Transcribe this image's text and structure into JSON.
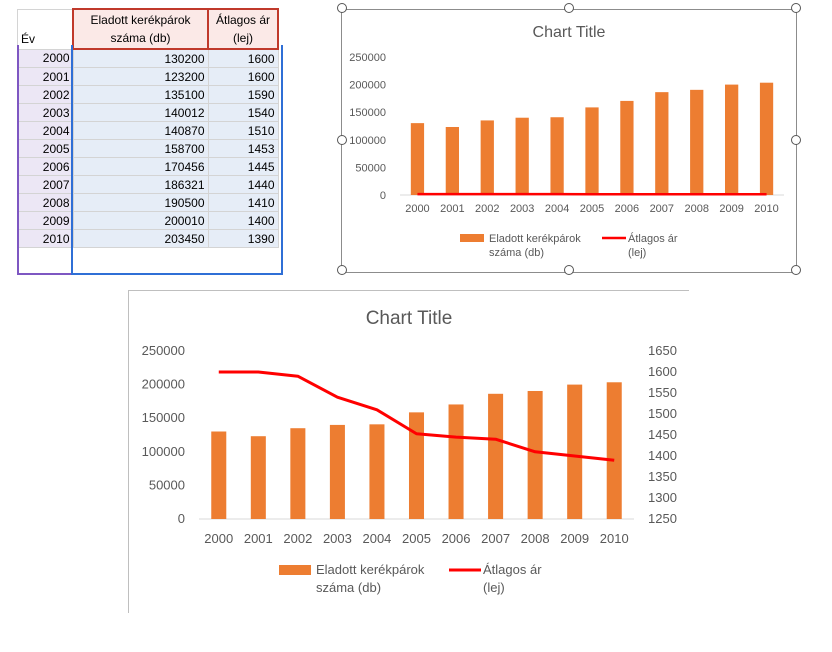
{
  "table": {
    "headers": {
      "year": "Év",
      "count_line1": "Eladott kerékpárok",
      "count_line2": "száma (db)",
      "price_line1": "Átlagos ár",
      "price_line2": "(lej)"
    },
    "rows": [
      {
        "year": "2000",
        "count": "130200",
        "price": "1600"
      },
      {
        "year": "2001",
        "count": "123200",
        "price": "1600"
      },
      {
        "year": "2002",
        "count": "135100",
        "price": "1590"
      },
      {
        "year": "2003",
        "count": "140012",
        "price": "1540"
      },
      {
        "year": "2004",
        "count": "140870",
        "price": "1510"
      },
      {
        "year": "2005",
        "count": "158700",
        "price": "1453"
      },
      {
        "year": "2006",
        "count": "170456",
        "price": "1445"
      },
      {
        "year": "2007",
        "count": "186321",
        "price": "1440"
      },
      {
        "year": "2008",
        "count": "190500",
        "price": "1410"
      },
      {
        "year": "2009",
        "count": "200010",
        "price": "1400"
      },
      {
        "year": "2010",
        "count": "203450",
        "price": "1390"
      }
    ]
  },
  "colors": {
    "bar": "#ed7d31",
    "line": "#ff0000",
    "axis_text": "#595959",
    "grid": "#d9d9d9"
  },
  "chart_data": [
    {
      "type": "bar",
      "title": "Chart Title",
      "categories": [
        "2000",
        "2001",
        "2002",
        "2003",
        "2004",
        "2005",
        "2006",
        "2007",
        "2008",
        "2009",
        "2010"
      ],
      "series": [
        {
          "name": "Eladott kerékpárok száma (db)",
          "type": "bar",
          "axis": "primary",
          "values": [
            130200,
            123200,
            135100,
            140012,
            140870,
            158700,
            170456,
            186321,
            190500,
            200010,
            203450
          ]
        },
        {
          "name": "Átlagos ár (lej)",
          "type": "line",
          "axis": "primary",
          "values": [
            1600,
            1600,
            1590,
            1540,
            1510,
            1453,
            1445,
            1440,
            1410,
            1400,
            1390
          ]
        }
      ],
      "ylim": [
        0,
        250000
      ],
      "yticks": [
        "0",
        "50000",
        "100000",
        "150000",
        "200000",
        "250000"
      ],
      "legend_labels": [
        [
          "Eladott kerékpárok",
          "száma (db)"
        ],
        [
          "Átlagos ár",
          "(lej)"
        ]
      ],
      "legend": "bottom",
      "grid": false
    },
    {
      "type": "bar",
      "title": "Chart Title",
      "categories": [
        "2000",
        "2001",
        "2002",
        "2003",
        "2004",
        "2005",
        "2006",
        "2007",
        "2008",
        "2009",
        "2010"
      ],
      "series": [
        {
          "name": "Eladott kerékpárok száma (db)",
          "type": "bar",
          "axis": "primary",
          "values": [
            130200,
            123200,
            135100,
            140012,
            140870,
            158700,
            170456,
            186321,
            190500,
            200010,
            203450
          ]
        },
        {
          "name": "Átlagos ár (lej)",
          "type": "line",
          "axis": "secondary",
          "values": [
            1600,
            1600,
            1590,
            1540,
            1510,
            1453,
            1445,
            1440,
            1410,
            1400,
            1390
          ]
        }
      ],
      "ylim": [
        0,
        250000
      ],
      "y2lim": [
        1250,
        1650
      ],
      "yticks": [
        "0",
        "50000",
        "100000",
        "150000",
        "200000",
        "250000"
      ],
      "y2ticks": [
        "1250",
        "1300",
        "1350",
        "1400",
        "1450",
        "1500",
        "1550",
        "1600",
        "1650"
      ],
      "legend_labels": [
        [
          "Eladott kerékpárok",
          "száma (db)"
        ],
        [
          "Átlagos ár",
          "(lej)"
        ]
      ],
      "legend": "bottom",
      "grid": false
    }
  ]
}
